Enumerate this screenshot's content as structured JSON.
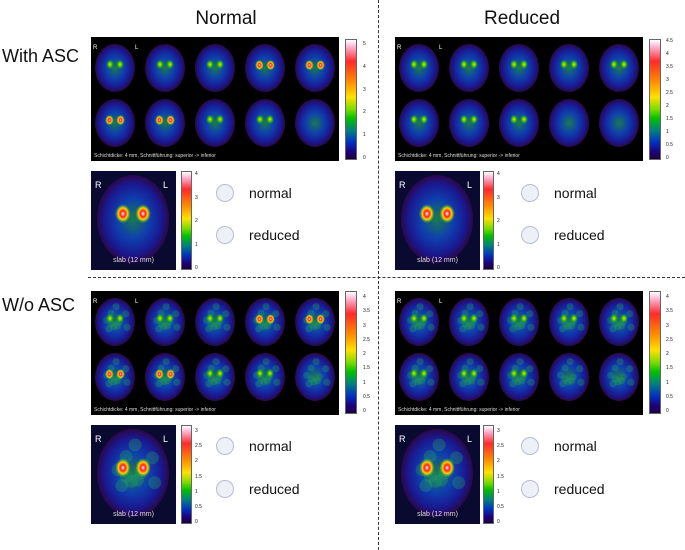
{
  "columns": [
    "Normal",
    "Reduced"
  ],
  "rows": [
    "With ASC",
    "W/o ASC"
  ],
  "orientation": {
    "right": "R",
    "left": "L"
  },
  "slice_caption": "Schichtdicke: 4 mm, Schnittführung: superior -> inferior",
  "slab_caption": "slab (12 mm)",
  "options": {
    "normal": "normal",
    "reduced": "reduced"
  },
  "scales": {
    "with_normal_panel": [
      "5",
      "4",
      "3",
      "2",
      "1",
      "0"
    ],
    "with_reduced_panel": [
      "4.5",
      "4",
      "3.5",
      "3",
      "2.5",
      "2",
      "1.5",
      "1",
      "0.5",
      "0"
    ],
    "with_normal_slab": [
      "4",
      "3",
      "2",
      "1",
      "0"
    ],
    "with_reduced_slab": [
      "4",
      "3",
      "2",
      "1",
      "0"
    ],
    "wo_normal_panel": [
      "4",
      "3.5",
      "3",
      "2.5",
      "2",
      "1.5",
      "1",
      "0.5",
      "0"
    ],
    "wo_reduced_panel": [
      "4",
      "3.5",
      "3",
      "2.5",
      "2",
      "1.5",
      "1",
      "0.5",
      "0"
    ],
    "wo_normal_slab": [
      "3",
      "2.5",
      "2",
      "1.5",
      "1",
      "0.5",
      "0"
    ],
    "wo_reduced_slab": [
      "3",
      "2.5",
      "2",
      "1.5",
      "1",
      "0.5",
      "0"
    ]
  }
}
